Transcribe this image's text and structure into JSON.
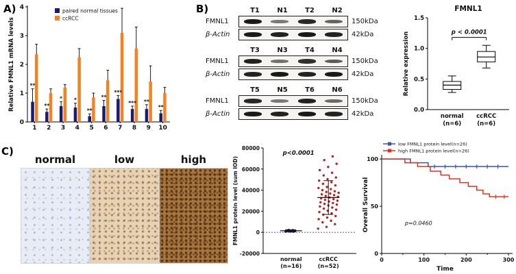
{
  "panels": {
    "a_label": "A)",
    "b_label": "B)",
    "c_label": "C)"
  },
  "ihc": {
    "labels": [
      "normal",
      "low",
      "high"
    ]
  },
  "blots": {
    "groups": [
      {
        "lanes": [
          "T1",
          "N1",
          "T2",
          "N2"
        ],
        "rows": [
          {
            "label": "FMNL1",
            "size": "150kDa",
            "bands": [
              0.95,
              0.3,
              0.85,
              0.45
            ]
          },
          {
            "label": "β-Actin",
            "size": "42kDa",
            "bands": [
              0.95,
              0.9,
              0.95,
              0.9
            ]
          }
        ]
      },
      {
        "lanes": [
          "T3",
          "N3",
          "T4",
          "N4"
        ],
        "rows": [
          {
            "label": "FMNL1",
            "size": "150kDa",
            "bands": [
              0.9,
              0.35,
              0.8,
              0.5
            ]
          },
          {
            "label": "β-Actin",
            "size": "42kDa",
            "bands": [
              0.9,
              0.95,
              0.9,
              0.95
            ]
          }
        ]
      },
      {
        "lanes": [
          "T5",
          "N5",
          "T6",
          "N6"
        ],
        "rows": [
          {
            "label": "FMNL1",
            "size": "150kDa",
            "bands": [
              0.85,
              0.3,
              0.9,
              0.4
            ]
          },
          {
            "label": "β-Actin",
            "size": "42kDa",
            "bands": [
              0.95,
              0.9,
              0.95,
              0.9
            ]
          }
        ]
      }
    ]
  },
  "chart_data": [
    {
      "id": "mrna_bar",
      "type": "bar",
      "title": "",
      "ylabel": "Relative FMNL1 mRNA levels",
      "xlabel": "",
      "ylim": [
        0,
        4
      ],
      "yticks": [
        0,
        1,
        2,
        3,
        4
      ],
      "categories": [
        "1",
        "2",
        "3",
        "4",
        "5",
        "6",
        "7",
        "8",
        "9",
        "10"
      ],
      "series": [
        {
          "name": "paired normal tissues",
          "color": "#1b1b70",
          "values": [
            0.7,
            0.35,
            0.55,
            0.5,
            0.2,
            0.55,
            0.8,
            0.45,
            0.45,
            0.3
          ],
          "errors": [
            0.45,
            0.1,
            0.15,
            0.15,
            0.08,
            0.2,
            0.12,
            0.1,
            0.15,
            0.1
          ]
        },
        {
          "name": "ccRCC",
          "color": "#f58220",
          "values": [
            2.35,
            1.0,
            1.2,
            2.25,
            0.85,
            1.45,
            3.1,
            2.55,
            1.4,
            1.0
          ],
          "errors": [
            0.35,
            0.15,
            0.1,
            0.3,
            0.15,
            0.35,
            0.85,
            0.75,
            0.55,
            0.2
          ]
        }
      ],
      "significance": [
        "**",
        "**",
        "*",
        "*",
        "**",
        "**",
        "***",
        "***",
        "**",
        "**"
      ],
      "legend_position": "top"
    },
    {
      "id": "fmnl1_box",
      "type": "box",
      "title": "FMNL1",
      "ylabel": "Relative expression",
      "ylim": [
        0,
        1.5
      ],
      "yticks": [
        0,
        0.5,
        1.0,
        1.5
      ],
      "groups": [
        {
          "label": "normal",
          "sublabel": "(n=6)",
          "min": 0.28,
          "q1": 0.33,
          "median": 0.4,
          "q3": 0.46,
          "max": 0.55
        },
        {
          "label": "ccRCC",
          "sublabel": "(n=6)",
          "min": 0.68,
          "q1": 0.78,
          "median": 0.86,
          "q3": 0.95,
          "max": 1.05
        }
      ],
      "annotation": "p < 0.0001",
      "bracket_y": 1.18
    },
    {
      "id": "protein_scatter",
      "type": "scatter",
      "ylabel": "FMNL1 protein level (sum IOD)",
      "ylim": [
        -20000,
        80000
      ],
      "yticks": [
        -20000,
        0,
        20000,
        40000,
        60000,
        80000
      ],
      "annotation": "p<0.0001",
      "zero_line": true,
      "groups": [
        {
          "label": "normal",
          "sublabel": "(n=16)",
          "color": "#1b1b70",
          "mean": 1500,
          "sd": 900,
          "values": [
            600,
            900,
            1100,
            1300,
            1500,
            1700,
            800,
            1200,
            1900,
            2100,
            1000,
            1400,
            1600,
            2300,
            700,
            1800
          ]
        },
        {
          "label": "ccRCC",
          "sublabel": "(n=52)",
          "color": "#b22222",
          "mean": 33000,
          "sd": 16000,
          "values": [
            3500,
            5200,
            7800,
            9500,
            11000,
            12500,
            14000,
            15500,
            16800,
            18000,
            19200,
            20500,
            21500,
            22500,
            23500,
            24500,
            25500,
            26300,
            27000,
            27800,
            28500,
            29300,
            30000,
            30800,
            31500,
            32200,
            33000,
            33800,
            34500,
            35300,
            36000,
            36800,
            37500,
            38300,
            39000,
            40000,
            41000,
            42000,
            43000,
            44500,
            46000,
            47500,
            49000,
            50500,
            52000,
            54000,
            56500,
            59000,
            62000,
            65000,
            68500,
            72000
          ]
        }
      ]
    },
    {
      "id": "overall_survival",
      "type": "line",
      "xlabel": "Time",
      "ylabel": "Overall Survival",
      "xlim": [
        0,
        300
      ],
      "ylim": [
        0,
        103
      ],
      "xticks": [
        0,
        100,
        200,
        300
      ],
      "yticks": [
        0,
        50,
        100
      ],
      "annotation": "p=0.0460",
      "series": [
        {
          "name": "low FMNL1 protein level(n=26)",
          "color": "#3a53a4",
          "steps": [
            [
              0,
              100
            ],
            [
              68,
              100
            ],
            [
              68,
              96
            ],
            [
              110,
              96
            ],
            [
              110,
              92
            ],
            [
              300,
              92
            ]
          ],
          "censors": [
            [
              125,
              92
            ],
            [
              150,
              92
            ],
            [
              175,
              92
            ],
            [
              200,
              92
            ],
            [
              225,
              92
            ],
            [
              250,
              92
            ],
            [
              275,
              92
            ]
          ]
        },
        {
          "name": "high FMNL1 protein level(n=26)",
          "color": "#e0301e",
          "steps": [
            [
              0,
              100
            ],
            [
              55,
              100
            ],
            [
              55,
              96
            ],
            [
              85,
              96
            ],
            [
              85,
              92
            ],
            [
              115,
              92
            ],
            [
              115,
              87
            ],
            [
              140,
              87
            ],
            [
              140,
              83
            ],
            [
              160,
              83
            ],
            [
              160,
              79
            ],
            [
              185,
              79
            ],
            [
              185,
              75
            ],
            [
              205,
              75
            ],
            [
              205,
              71
            ],
            [
              225,
              71
            ],
            [
              225,
              67
            ],
            [
              240,
              67
            ],
            [
              240,
              63
            ],
            [
              255,
              63
            ],
            [
              255,
              60
            ],
            [
              300,
              60
            ]
          ],
          "censors": [
            [
              270,
              60
            ],
            [
              290,
              60
            ]
          ]
        }
      ]
    }
  ]
}
